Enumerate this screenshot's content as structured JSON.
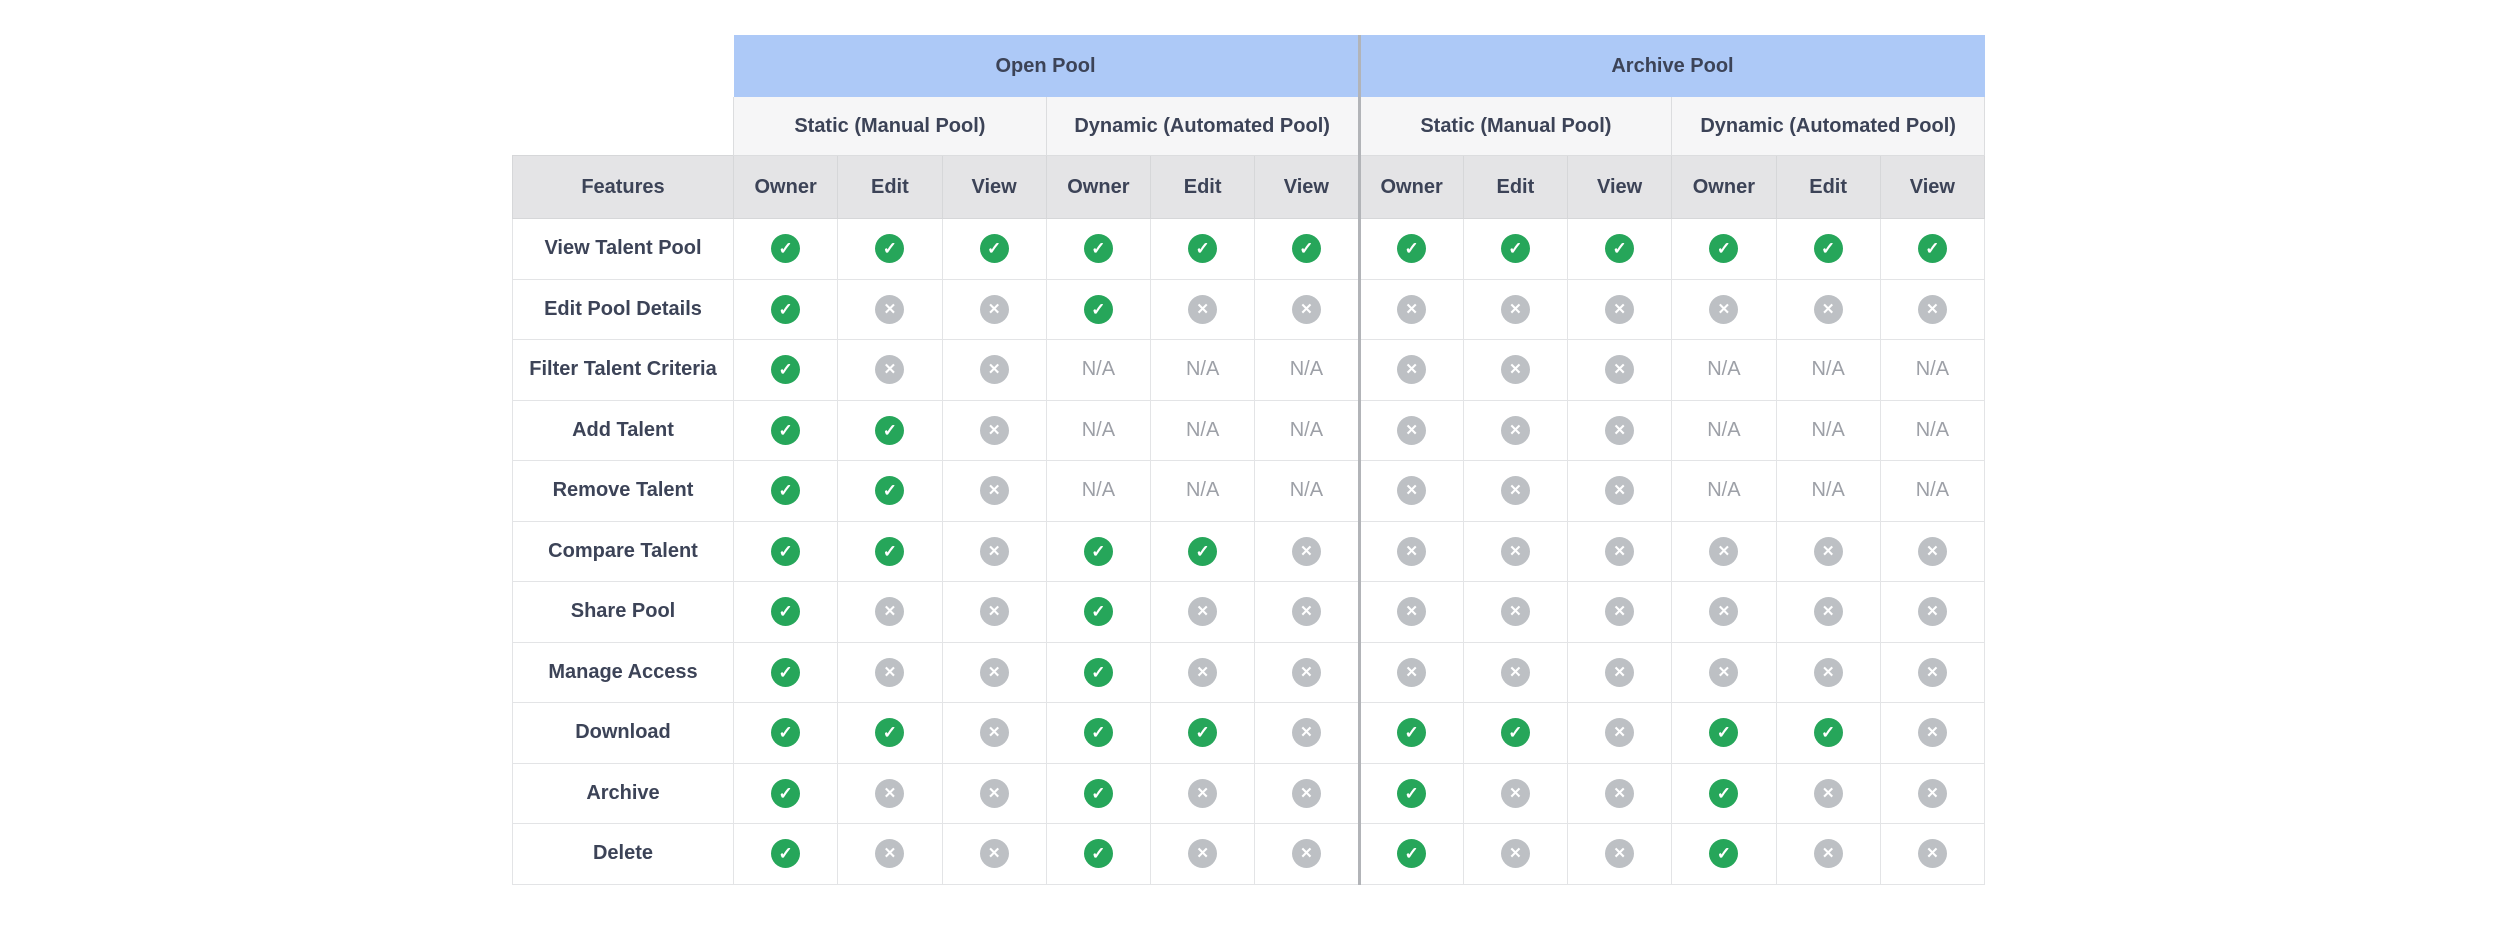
{
  "table": {
    "pools": [
      {
        "label": "Open Pool",
        "subgroups": [
          {
            "label": "Static (Manual Pool)"
          },
          {
            "label": "Dynamic (Automated Pool)"
          }
        ]
      },
      {
        "label": "Archive Pool",
        "subgroups": [
          {
            "label": "Static (Manual Pool)"
          },
          {
            "label": "Dynamic (Automated Pool)"
          }
        ]
      }
    ],
    "features_header": "Features",
    "role_headers": [
      "Owner",
      "Edit",
      "View"
    ],
    "na_label": "N/A",
    "icons": {
      "check": "✓",
      "cross": "✕"
    },
    "rows": [
      {
        "feature": "View Talent Pool",
        "cells": [
          "yes",
          "yes",
          "yes",
          "yes",
          "yes",
          "yes",
          "yes",
          "yes",
          "yes",
          "yes",
          "yes",
          "yes"
        ]
      },
      {
        "feature": "Edit Pool Details",
        "cells": [
          "yes",
          "no",
          "no",
          "yes",
          "no",
          "no",
          "no",
          "no",
          "no",
          "no",
          "no",
          "no"
        ]
      },
      {
        "feature": "Filter Talent Criteria",
        "cells": [
          "yes",
          "no",
          "no",
          "na",
          "na",
          "na",
          "no",
          "no",
          "no",
          "na",
          "na",
          "na"
        ]
      },
      {
        "feature": "Add Talent",
        "cells": [
          "yes",
          "yes",
          "no",
          "na",
          "na",
          "na",
          "no",
          "no",
          "no",
          "na",
          "na",
          "na"
        ]
      },
      {
        "feature": "Remove Talent",
        "cells": [
          "yes",
          "yes",
          "no",
          "na",
          "na",
          "na",
          "no",
          "no",
          "no",
          "na",
          "na",
          "na"
        ]
      },
      {
        "feature": "Compare Talent",
        "cells": [
          "yes",
          "yes",
          "no",
          "yes",
          "yes",
          "no",
          "no",
          "no",
          "no",
          "no",
          "no",
          "no"
        ]
      },
      {
        "feature": "Share Pool",
        "cells": [
          "yes",
          "no",
          "no",
          "yes",
          "no",
          "no",
          "no",
          "no",
          "no",
          "no",
          "no",
          "no"
        ]
      },
      {
        "feature": "Manage Access",
        "cells": [
          "yes",
          "no",
          "no",
          "yes",
          "no",
          "no",
          "no",
          "no",
          "no",
          "no",
          "no",
          "no"
        ]
      },
      {
        "feature": "Download",
        "cells": [
          "yes",
          "yes",
          "no",
          "yes",
          "yes",
          "no",
          "yes",
          "yes",
          "no",
          "yes",
          "yes",
          "no"
        ]
      },
      {
        "feature": "Archive",
        "cells": [
          "yes",
          "no",
          "no",
          "yes",
          "no",
          "no",
          "yes",
          "no",
          "no",
          "yes",
          "no",
          "no"
        ]
      },
      {
        "feature": "Delete",
        "cells": [
          "yes",
          "no",
          "no",
          "yes",
          "no",
          "no",
          "yes",
          "no",
          "no",
          "yes",
          "no",
          "no"
        ]
      }
    ],
    "colors": {
      "pool_header_bg": "#adc9f7",
      "subgroup_bg": "#f6f6f7",
      "role_header_bg": "#e4e4e6",
      "check_green": "#26a65a",
      "cross_gray": "#bdc0c4",
      "text": "#3c4357",
      "na_text": "#9da0a7"
    }
  }
}
